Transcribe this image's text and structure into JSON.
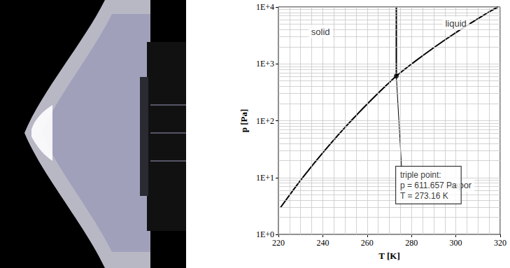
{
  "chart_data": {
    "type": "line",
    "xlabel": "T [K]",
    "ylabel": "p [Pa]",
    "xlim": [
      220,
      320
    ],
    "xticks": [
      220,
      240,
      260,
      280,
      300,
      320
    ],
    "ylim": [
      1,
      10000
    ],
    "yticks": [
      {
        "value": 1,
        "label": "1E+0"
      },
      {
        "value": 10,
        "label": "1E+1"
      },
      {
        "value": 100,
        "label": "1E+2"
      },
      {
        "value": 1000,
        "label": "1E+3"
      },
      {
        "value": 10000,
        "label": "1E+4"
      }
    ],
    "log": "y",
    "grid": true,
    "series": [
      {
        "type": "line",
        "color": "#000000",
        "line_style": "solid",
        "x": [
          221,
          225,
          230,
          235,
          240,
          245,
          250,
          255,
          260,
          265,
          270,
          273.16
        ],
        "values": [
          3.0,
          4.9,
          8.97,
          15.8,
          27.3,
          46,
          76,
          123,
          196,
          306,
          470,
          611.657
        ]
      },
      {
        "type": "line",
        "color": "#000000",
        "line_style": "solid",
        "x": [
          273.16,
          280,
          290,
          300,
          310,
          315,
          319
        ],
        "values": [
          611.657,
          992,
          1920,
          3537,
          6231,
          8200,
          10000
        ]
      },
      {
        "type": "line",
        "color": "#000000",
        "line_style": "solid",
        "x": [
          273.16,
          273.16
        ],
        "values": [
          611.657,
          10000
        ]
      },
      {
        "type": "scatter",
        "color": "#000000",
        "marker": "circle",
        "x": [
          273.16
        ],
        "values": [
          611.657
        ]
      }
    ],
    "annotations": [
      {
        "text": "solid",
        "x": 239,
        "y": 3700
      },
      {
        "text": "liquid",
        "x": 300,
        "y": 5200
      },
      {
        "text": "vapor",
        "x": 302,
        "y": 7.3
      },
      {
        "text": [
          "triple point:",
          "p = 611.657 Pa",
          "T = 273.16 K"
        ],
        "x": 275.5,
        "y": 15.6,
        "points_to": [
          273.16,
          611.657
        ]
      }
    ]
  }
}
